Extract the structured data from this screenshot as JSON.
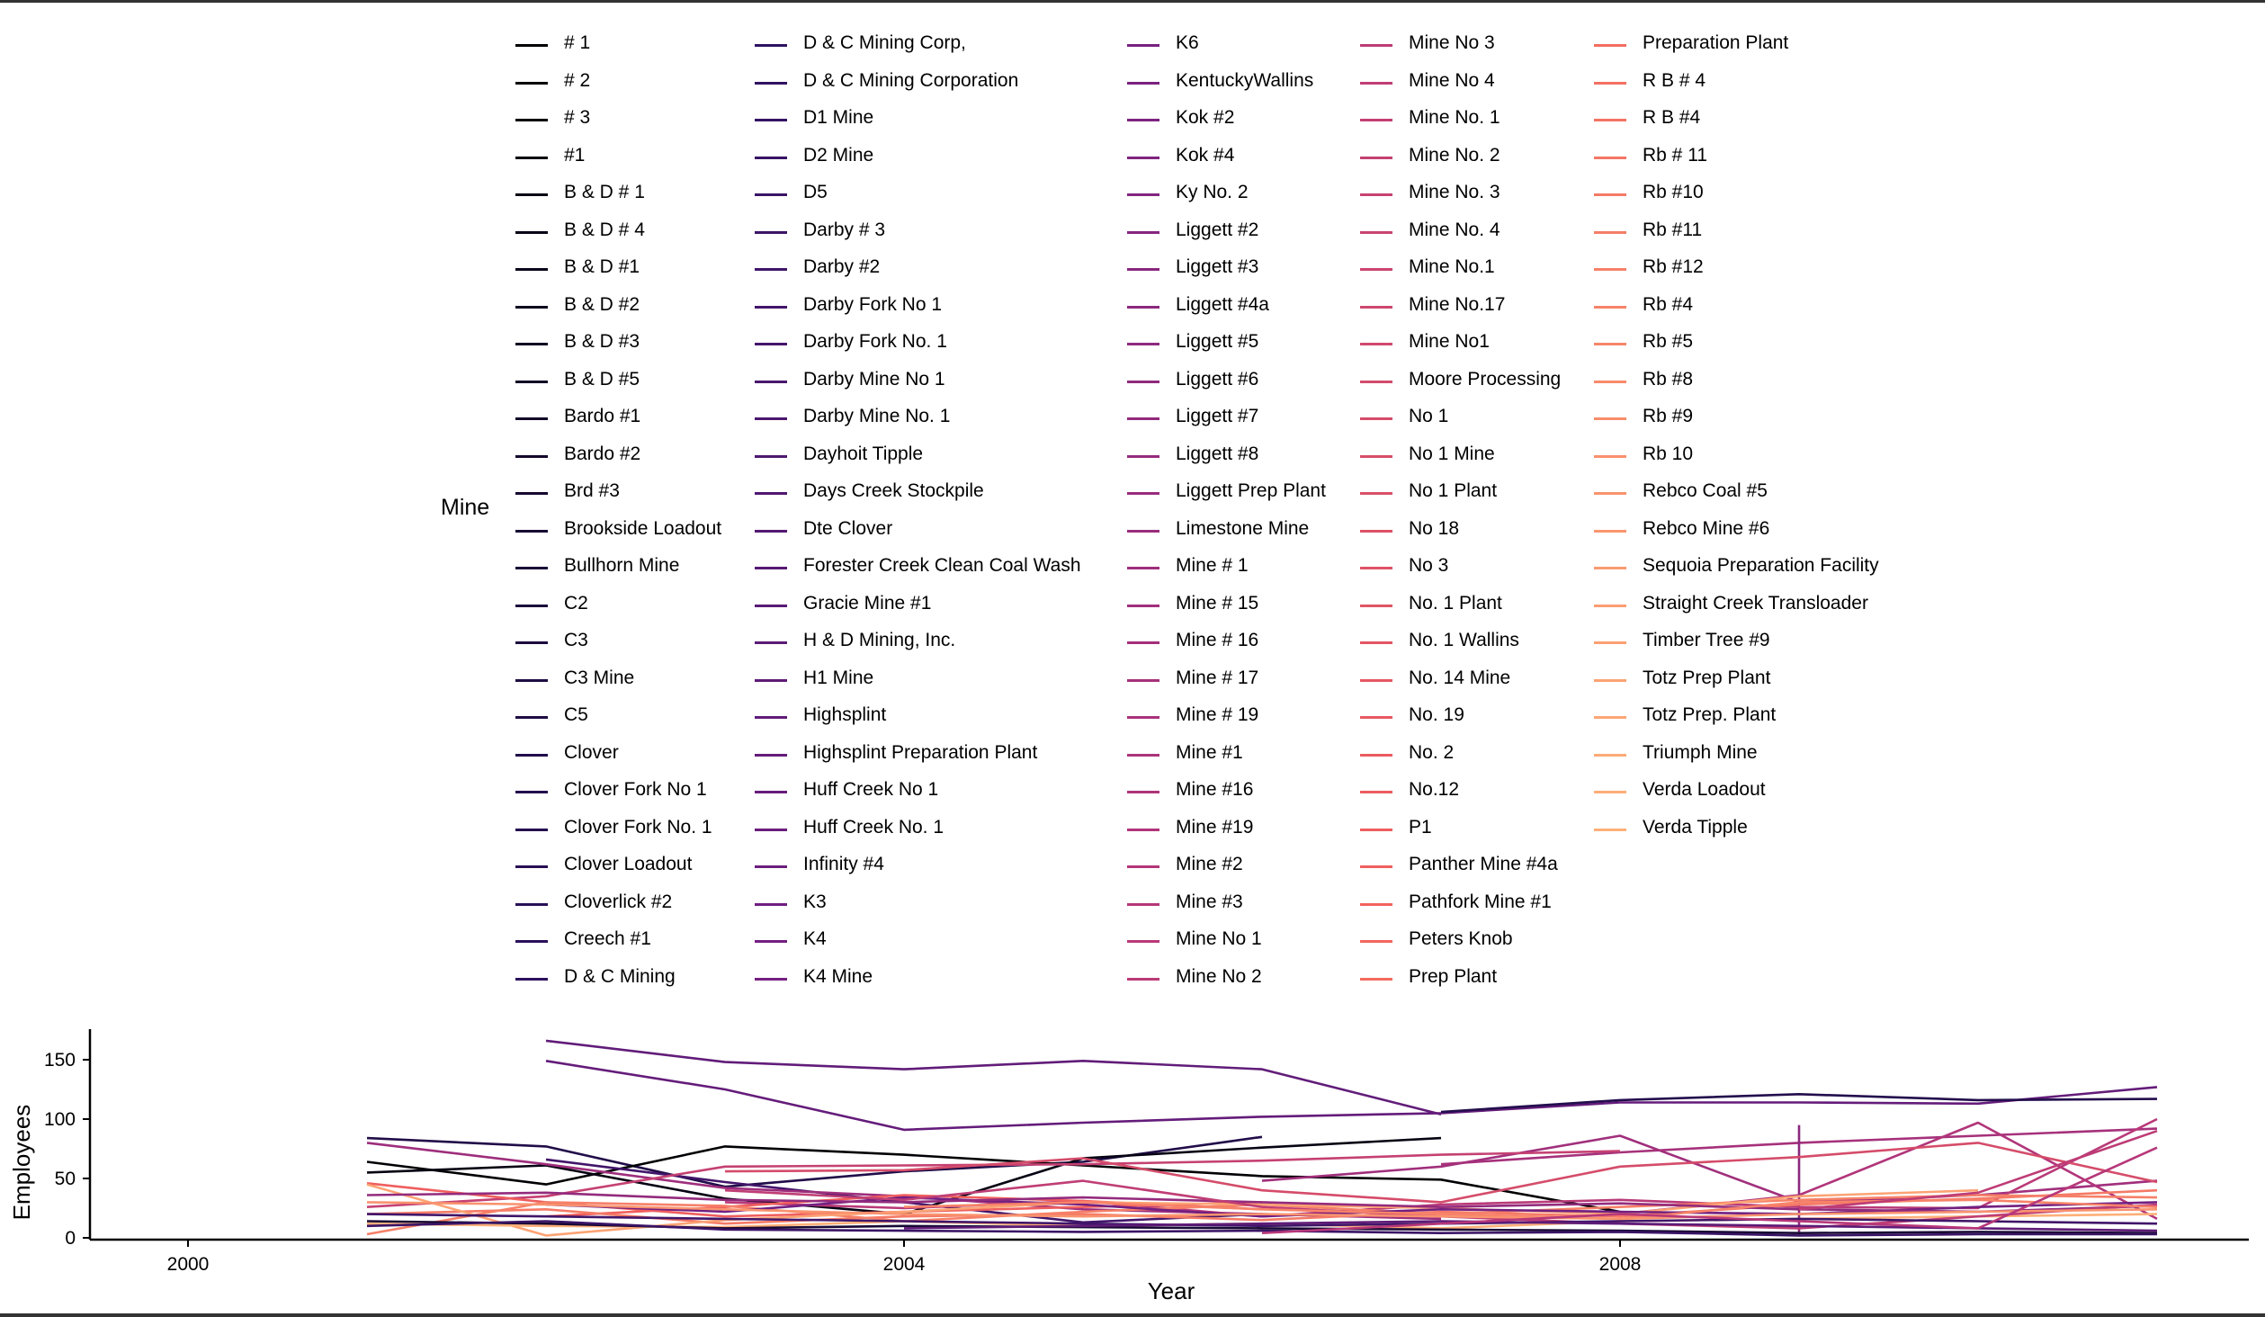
{
  "chart_data": {
    "type": "line",
    "xlabel": "Year",
    "ylabel": "Employees",
    "legend_title": "Mine",
    "legend_position": "top",
    "xlim": [
      2000,
      2011.5
    ],
    "ylim": [
      0,
      175
    ],
    "x_ticks": [
      2000,
      2004,
      2008
    ],
    "y_ticks": [
      0,
      50,
      100,
      150
    ],
    "grid": false,
    "color_scale": [
      "#000004",
      "#2c115f",
      "#721f81",
      "#b73779",
      "#f1605d",
      "#feb078"
    ],
    "legend_columns": [
      [
        "# 1",
        "# 2",
        "# 3",
        "#1",
        "B & D # 1",
        "B & D # 4",
        "B & D #1",
        "B & D #2",
        "B & D #3",
        "B & D #5",
        "Bardo #1",
        "Bardo #2",
        "Brd #3",
        "Brookside Loadout",
        "Bullhorn Mine",
        "C2",
        "C3",
        "C3 Mine",
        "C5",
        "Clover",
        "Clover Fork No 1",
        "Clover Fork No. 1",
        "Clover Loadout",
        "Cloverlick #2",
        "Creech #1",
        "D & C Mining"
      ],
      [
        "D & C Mining  Corp,",
        "D & C Mining  Corporation",
        "D1 Mine",
        "D2 Mine",
        "D5",
        "Darby # 3",
        "Darby #2",
        "Darby Fork No 1",
        "Darby Fork No. 1",
        "Darby Mine No 1",
        "Darby Mine No. 1",
        "Dayhoit Tipple",
        "Days Creek Stockpile",
        "Dte Clover",
        "Forester Creek Clean Coal Wash",
        "Gracie Mine #1",
        "H & D Mining, Inc.",
        "H1 Mine",
        "Highsplint",
        "Highsplint Preparation Plant",
        "Huff Creek No 1",
        "Huff Creek No. 1",
        "Infinity #4",
        "K3",
        "K4",
        "K4 Mine"
      ],
      [
        "K6",
        "KentuckyWallins",
        "Kok #2",
        "Kok #4",
        "Ky No. 2",
        "Liggett #2",
        "Liggett #3",
        "Liggett #4a",
        "Liggett #5",
        "Liggett #6",
        "Liggett #7",
        "Liggett #8",
        "Liggett Prep Plant",
        "Limestone Mine",
        "Mine # 1",
        "Mine # 15",
        "Mine # 16",
        "Mine # 17",
        "Mine # 19",
        "Mine #1",
        "Mine #16",
        "Mine #19",
        "Mine #2",
        "Mine #3",
        "Mine No 1",
        "Mine No 2"
      ],
      [
        "Mine No 3",
        "Mine No 4",
        "Mine No. 1",
        "Mine No. 2",
        "Mine No. 3",
        "Mine No. 4",
        "Mine No.1",
        "Mine No.17",
        "Mine No1",
        "Moore Processing",
        "No 1",
        "No 1 Mine",
        "No 1 Plant",
        "No 18",
        "No 3",
        "No. 1 Plant",
        "No. 1 Wallins",
        "No. 14 Mine",
        "No. 19",
        "No. 2",
        "No.12",
        "P1",
        "Panther Mine #4a",
        "Pathfork Mine #1",
        "Peters Knob",
        "Prep Plant"
      ],
      [
        "Preparation Plant",
        "R B # 4",
        "R B #4",
        "Rb # 11",
        "Rb #10",
        "Rb #11",
        "Rb #12",
        "Rb #4",
        "Rb #5",
        "Rb #8",
        "Rb #9",
        "Rb 10",
        "Rebco Coal #5",
        "Rebco Mine #6",
        "Sequoia Preparation Facility",
        "Straight Creek Transloader",
        "Timber Tree #9",
        "Totz Prep Plant",
        "Totz Prep. Plant",
        "Triumph Mine",
        "Verda Loadout",
        "Verda Tipple"
      ]
    ],
    "series": [
      {
        "name": "Highsplint",
        "x": [
          2002,
          2003,
          2004,
          2005,
          2006,
          2007
        ],
        "y": [
          166,
          148,
          142,
          149,
          142,
          104
        ]
      },
      {
        "name": "Highsplint Preparation Plant",
        "x": [
          2002,
          2003,
          2004,
          2005,
          2006,
          2007,
          2008,
          2009,
          2010,
          2011
        ],
        "y": [
          149,
          125,
          91,
          97,
          102,
          105,
          114,
          114,
          113,
          127
        ]
      },
      {
        "name": "Clover Fork No 1",
        "x": [
          2007,
          2008,
          2009,
          2010,
          2011
        ],
        "y": [
          106,
          116,
          121,
          116,
          117
        ]
      },
      {
        "name": "Clover",
        "x": [
          2001,
          2002,
          2003,
          2004,
          2005,
          2006
        ],
        "y": [
          84,
          77,
          43,
          56,
          64,
          85
        ]
      },
      {
        "name": "# 1",
        "x": [
          2001,
          2002,
          2003,
          2004,
          2005,
          2006,
          2007,
          2008
        ],
        "y": [
          64,
          45,
          77,
          70,
          61,
          52,
          49,
          22
        ]
      },
      {
        "name": "B & D # 1",
        "x": [
          2001,
          2002,
          2003,
          2004,
          2005,
          2006,
          2007
        ],
        "y": [
          55,
          61,
          33,
          20,
          67,
          76,
          84
        ]
      },
      {
        "name": "Darby Fork No 1",
        "x": [
          2002,
          2003,
          2004,
          2005,
          2006
        ],
        "y": [
          66,
          47,
          30,
          13,
          20
        ]
      },
      {
        "name": "Mine # 1",
        "x": [
          2001,
          2002,
          2003,
          2004,
          2005,
          2006,
          2007
        ],
        "y": [
          80,
          62,
          42,
          35,
          24,
          20,
          16
        ]
      },
      {
        "name": "Mine # 15",
        "x": [
          2006,
          2007,
          2008,
          2009,
          2010,
          2011
        ],
        "y": [
          48,
          60,
          86,
          30,
          36,
          48
        ]
      },
      {
        "name": "Mine # 17",
        "x": [
          2007,
          2008,
          2009,
          2010,
          2011
        ],
        "y": [
          62,
          72,
          80,
          86,
          92
        ]
      },
      {
        "name": "Mine #19",
        "x": [
          2008,
          2009,
          2010,
          2011
        ],
        "y": [
          20,
          36,
          97,
          16
        ]
      },
      {
        "name": "Liggett #4a",
        "x": [
          2009,
          2009
        ],
        "y": [
          2,
          95
        ]
      },
      {
        "name": "Mine No 1",
        "x": [
          2003,
          2004,
          2005,
          2006,
          2007,
          2008,
          2009,
          2010,
          2011
        ],
        "y": [
          30,
          25,
          31,
          18,
          28,
          32,
          26,
          25,
          100
        ]
      },
      {
        "name": "Mine No. 2",
        "x": [
          2001,
          2002,
          2003,
          2004,
          2005,
          2006,
          2007,
          2008
        ],
        "y": [
          26,
          35,
          60,
          61,
          62,
          65,
          70,
          73
        ]
      },
      {
        "name": "No 1",
        "x": [
          2003,
          2004,
          2005,
          2006,
          2007,
          2008,
          2009,
          2010,
          2011
        ],
        "y": [
          56,
          57,
          67,
          40,
          30,
          60,
          68,
          80,
          47
        ]
      },
      {
        "name": "P1",
        "x": [
          2001,
          2002,
          2003,
          2004,
          2005,
          2006
        ],
        "y": [
          46,
          30,
          18,
          22,
          26,
          30
        ]
      },
      {
        "name": "Panther Mine #4a",
        "x": [
          2002,
          2003,
          2004,
          2005,
          2006
        ],
        "y": [
          18,
          26,
          36,
          31,
          24
        ]
      },
      {
        "name": "Rb #10",
        "x": [
          2001,
          2002,
          2003,
          2004,
          2005,
          2006,
          2007,
          2008,
          2009,
          2010,
          2011
        ],
        "y": [
          20,
          24,
          12,
          18,
          20,
          15,
          22,
          18,
          28,
          33,
          40
        ]
      },
      {
        "name": "Rb #12",
        "x": [
          2001,
          2002,
          2003,
          2004,
          2005,
          2006,
          2007,
          2008,
          2009,
          2010,
          2011
        ],
        "y": [
          3,
          30,
          27,
          14,
          22,
          28,
          20,
          26,
          32,
          36,
          34
        ]
      },
      {
        "name": "Totz Prep Plant",
        "x": [
          2001,
          2002,
          2003,
          2004,
          2005,
          2006,
          2007,
          2008,
          2009,
          2010
        ],
        "y": [
          45,
          2,
          15,
          22,
          30,
          28,
          25,
          20,
          35,
          40
        ]
      },
      {
        "name": "Verda Tipple",
        "x": [
          2001,
          2002,
          2003,
          2004,
          2005,
          2006,
          2007,
          2008,
          2009,
          2010,
          2011
        ],
        "y": [
          12,
          10,
          9,
          14,
          10,
          12,
          8,
          14,
          16,
          18,
          20
        ]
      },
      {
        "name": "Brookside Loadout",
        "x": [
          2001,
          2002,
          2003,
          2004,
          2005,
          2006,
          2007,
          2008,
          2009,
          2010,
          2011
        ],
        "y": [
          14,
          12,
          8,
          10,
          9,
          8,
          7,
          6,
          4,
          5,
          4
        ]
      },
      {
        "name": "D5",
        "x": [
          2001,
          2002,
          2003,
          2004,
          2005,
          2006,
          2007,
          2008,
          2009,
          2010,
          2011
        ],
        "y": [
          10,
          14,
          7,
          6,
          5,
          6,
          4,
          5,
          2,
          3,
          3
        ]
      },
      {
        "name": "K4",
        "x": [
          2002,
          2003,
          2004,
          2005,
          2006,
          2007,
          2008,
          2009,
          2010,
          2011
        ],
        "y": [
          28,
          22,
          34,
          28,
          18,
          24,
          22,
          20,
          26,
          30
        ]
      },
      {
        "name": "Liggett #7",
        "x": [
          2001,
          2002,
          2003,
          2004,
          2005,
          2006,
          2007,
          2008,
          2009,
          2010,
          2011
        ],
        "y": [
          36,
          38,
          32,
          30,
          34,
          30,
          26,
          29,
          24,
          22,
          27
        ]
      },
      {
        "name": "Mine No 4",
        "x": [
          2003,
          2004,
          2005,
          2006,
          2007,
          2008,
          2009,
          2010,
          2011
        ],
        "y": [
          40,
          32,
          48,
          26,
          18,
          12,
          8,
          18,
          28
        ]
      },
      {
        "name": "Rb #4",
        "x": [
          2004,
          2005,
          2006,
          2007,
          2008,
          2009,
          2010,
          2011
        ],
        "y": [
          26,
          30,
          24,
          20,
          16,
          30,
          32,
          26
        ]
      },
      {
        "name": "Rebco Coal #5",
        "x": [
          2001,
          2002,
          2003,
          2004,
          2005,
          2006,
          2007,
          2008,
          2009,
          2010,
          2011
        ],
        "y": [
          30,
          28,
          24,
          20,
          18,
          20,
          18,
          16,
          20,
          22,
          24
        ]
      },
      {
        "name": "Darby #2",
        "x": [
          2001,
          2002,
          2003,
          2004,
          2005,
          2006,
          2007,
          2008,
          2009,
          2010,
          2011
        ],
        "y": [
          20,
          18,
          16,
          14,
          12,
          10,
          12,
          14,
          16,
          14,
          12
        ]
      },
      {
        "name": "H1 Mine",
        "x": [
          2004,
          2005,
          2006,
          2007,
          2008,
          2009,
          2010,
          2011
        ],
        "y": [
          8,
          10,
          12,
          14,
          12,
          10,
          8,
          6
        ]
      },
      {
        "name": "Mine #3",
        "x": [
          2006,
          2007,
          2008,
          2009,
          2010,
          2011
        ],
        "y": [
          4,
          12,
          20,
          14,
          8,
          76
        ]
      },
      {
        "name": "Mine No 3",
        "x": [
          2009,
          2010,
          2011
        ],
        "y": [
          24,
          38,
          90
        ]
      }
    ]
  }
}
